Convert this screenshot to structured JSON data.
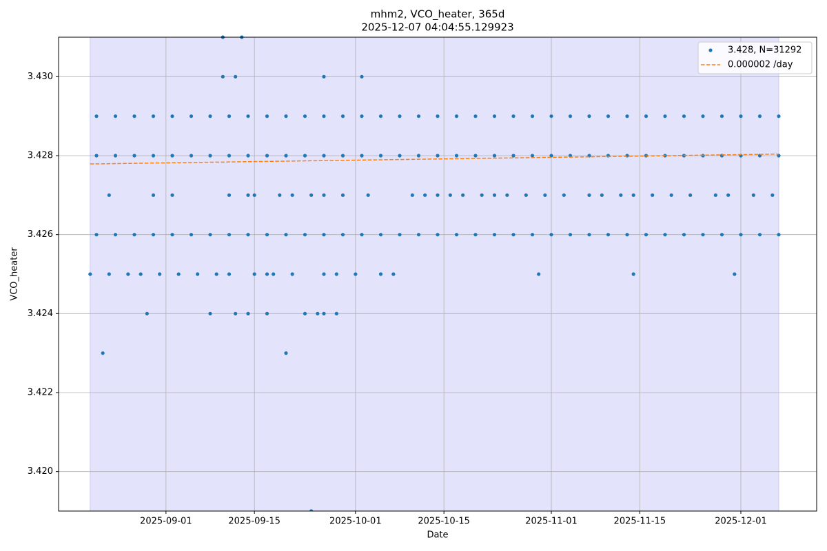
{
  "chart_data": {
    "type": "scatter",
    "title": "mhm2, VCO_heater, 365d",
    "subtitle": "2025-12-07 04:04:55.129923",
    "x_label": "Date",
    "y_label": "VCO_heater",
    "xlim": [
      "2025-08-15",
      "2025-12-13"
    ],
    "xticks": [
      "2025-09-01",
      "2025-09-15",
      "2025-10-01",
      "2025-10-15",
      "2025-11-01",
      "2025-11-15",
      "2025-12-01"
    ],
    "ylim": [
      3.419,
      3.431
    ],
    "yticks": [
      {
        "value": 3.42,
        "label": "3.420"
      },
      3.422,
      3.424,
      3.426,
      3.428,
      {
        "value": 3.43,
        "label": "3.430"
      }
    ],
    "grid": true,
    "legend": "upper right",
    "shaded_span": {
      "x": [
        "2025-08-20",
        "2025-12-07"
      ],
      "color": "#e3e3fc"
    },
    "series": [
      {
        "name": "3.428, N=31292",
        "type": "scatter",
        "color": "#1f77b4",
        "x": [
          "2025-08-21",
          "2025-08-24",
          "2025-08-27",
          "2025-08-30",
          "2025-09-02",
          "2025-09-05",
          "2025-09-08",
          "2025-09-11",
          "2025-09-14",
          "2025-09-17",
          "2025-09-20",
          "2025-09-23",
          "2025-09-26",
          "2025-09-29",
          "2025-10-02",
          "2025-10-05",
          "2025-10-08",
          "2025-10-11",
          "2025-10-14",
          "2025-10-17",
          "2025-10-20",
          "2025-10-23",
          "2025-10-26",
          "2025-10-29",
          "2025-11-01",
          "2025-11-04",
          "2025-11-07",
          "2025-11-10",
          "2025-11-13",
          "2025-11-16",
          "2025-11-19",
          "2025-11-22",
          "2025-11-25",
          "2025-11-28",
          "2025-12-01",
          "2025-12-04",
          "2025-12-07",
          "2025-08-21",
          "2025-08-24",
          "2025-08-27",
          "2025-08-30",
          "2025-09-02",
          "2025-09-05",
          "2025-09-08",
          "2025-09-11",
          "2025-09-14",
          "2025-09-17",
          "2025-09-20",
          "2025-09-23",
          "2025-09-26",
          "2025-09-29",
          "2025-10-02",
          "2025-10-05",
          "2025-10-08",
          "2025-10-11",
          "2025-10-14",
          "2025-10-17",
          "2025-10-20",
          "2025-10-23",
          "2025-10-26",
          "2025-10-29",
          "2025-11-01",
          "2025-11-04",
          "2025-11-07",
          "2025-11-10",
          "2025-11-13",
          "2025-11-16",
          "2025-11-19",
          "2025-11-22",
          "2025-11-25",
          "2025-11-28",
          "2025-12-01",
          "2025-12-04",
          "2025-12-07",
          "2025-08-21",
          "2025-08-24",
          "2025-08-27",
          "2025-08-30",
          "2025-09-02",
          "2025-09-05",
          "2025-09-08",
          "2025-09-11",
          "2025-09-14",
          "2025-09-17",
          "2025-09-20",
          "2025-09-23",
          "2025-09-26",
          "2025-09-29",
          "2025-10-02",
          "2025-10-05",
          "2025-10-08",
          "2025-10-11",
          "2025-10-14",
          "2025-10-17",
          "2025-10-20",
          "2025-10-23",
          "2025-10-26",
          "2025-10-29",
          "2025-11-01",
          "2025-11-04",
          "2025-11-07",
          "2025-11-10",
          "2025-11-13",
          "2025-11-16",
          "2025-11-19",
          "2025-11-22",
          "2025-11-25",
          "2025-11-28",
          "2025-12-01",
          "2025-12-04",
          "2025-12-07",
          "2025-09-10",
          "2025-09-13",
          "2025-09-10",
          "2025-09-12",
          "2025-09-26",
          "2025-10-02",
          "2025-08-23",
          "2025-08-30",
          "2025-09-02",
          "2025-09-11",
          "2025-09-14",
          "2025-09-15",
          "2025-09-19",
          "2025-09-21",
          "2025-09-24",
          "2025-09-26",
          "2025-09-29",
          "2025-10-03",
          "2025-10-10",
          "2025-10-12",
          "2025-10-14",
          "2025-10-16",
          "2025-10-18",
          "2025-10-21",
          "2025-10-23",
          "2025-10-25",
          "2025-10-28",
          "2025-10-31",
          "2025-11-03",
          "2025-11-07",
          "2025-11-09",
          "2025-11-12",
          "2025-11-14",
          "2025-11-17",
          "2025-11-20",
          "2025-11-23",
          "2025-11-27",
          "2025-11-29",
          "2025-12-03",
          "2025-12-06",
          "2025-08-20",
          "2025-08-23",
          "2025-08-26",
          "2025-08-28",
          "2025-08-31",
          "2025-09-03",
          "2025-09-06",
          "2025-09-09",
          "2025-09-11",
          "2025-09-15",
          "2025-09-17",
          "2025-09-18",
          "2025-09-21",
          "2025-09-26",
          "2025-09-28",
          "2025-10-01",
          "2025-10-05",
          "2025-10-07",
          "2025-10-30",
          "2025-11-14",
          "2025-11-30",
          "2025-08-29",
          "2025-09-08",
          "2025-09-12",
          "2025-09-14",
          "2025-09-17",
          "2025-09-23",
          "2025-09-25",
          "2025-09-26",
          "2025-09-28",
          "2025-08-22",
          "2025-09-20",
          "2025-09-24"
        ],
        "values": [
          3.428,
          3.428,
          3.428,
          3.428,
          3.428,
          3.428,
          3.428,
          3.428,
          3.428,
          3.428,
          3.428,
          3.428,
          3.428,
          3.428,
          3.428,
          3.428,
          3.428,
          3.428,
          3.428,
          3.428,
          3.428,
          3.428,
          3.428,
          3.428,
          3.428,
          3.428,
          3.428,
          3.428,
          3.428,
          3.428,
          3.428,
          3.428,
          3.428,
          3.428,
          3.428,
          3.428,
          3.428,
          3.426,
          3.426,
          3.426,
          3.426,
          3.426,
          3.426,
          3.426,
          3.426,
          3.426,
          3.426,
          3.426,
          3.426,
          3.426,
          3.426,
          3.426,
          3.426,
          3.426,
          3.426,
          3.426,
          3.426,
          3.426,
          3.426,
          3.426,
          3.426,
          3.426,
          3.426,
          3.426,
          3.426,
          3.426,
          3.426,
          3.426,
          3.426,
          3.426,
          3.426,
          3.426,
          3.426,
          3.426,
          3.429,
          3.429,
          3.429,
          3.429,
          3.429,
          3.429,
          3.429,
          3.429,
          3.429,
          3.429,
          3.429,
          3.429,
          3.429,
          3.429,
          3.429,
          3.429,
          3.429,
          3.429,
          3.429,
          3.429,
          3.429,
          3.429,
          3.429,
          3.429,
          3.429,
          3.429,
          3.429,
          3.429,
          3.429,
          3.429,
          3.429,
          3.429,
          3.429,
          3.429,
          3.429,
          3.429,
          3.429,
          3.431,
          3.431,
          3.43,
          3.43,
          3.43,
          3.43,
          3.427,
          3.427,
          3.427,
          3.427,
          3.427,
          3.427,
          3.427,
          3.427,
          3.427,
          3.427,
          3.427,
          3.427,
          3.427,
          3.427,
          3.427,
          3.427,
          3.427,
          3.427,
          3.427,
          3.427,
          3.427,
          3.427,
          3.427,
          3.427,
          3.427,
          3.427,
          3.427,
          3.427,
          3.427,
          3.427,
          3.427,
          3.427,
          3.427,
          3.427,
          3.425,
          3.425,
          3.425,
          3.425,
          3.425,
          3.425,
          3.425,
          3.425,
          3.425,
          3.425,
          3.425,
          3.425,
          3.425,
          3.425,
          3.425,
          3.425,
          3.425,
          3.425,
          3.425,
          3.425,
          3.425,
          3.424,
          3.424,
          3.424,
          3.424,
          3.424,
          3.424,
          3.424,
          3.424,
          3.424,
          3.423,
          3.423,
          3.419
        ]
      },
      {
        "name": "0.000002 /day",
        "type": "line",
        "color": "#ff7f0e",
        "dashed": true,
        "x": [
          "2025-08-20",
          "2025-12-07"
        ],
        "values": [
          3.42779,
          3.42804
        ]
      }
    ]
  }
}
